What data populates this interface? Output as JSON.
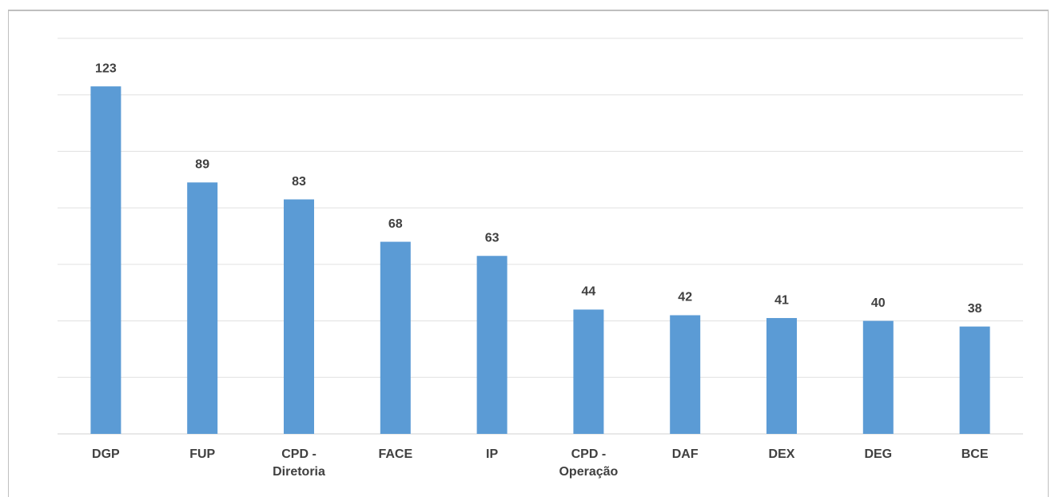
{
  "chart_data": {
    "type": "bar",
    "categories": [
      "DGP",
      "FUP",
      "CPD - Diretoria",
      "FACE",
      "IP",
      "CPD - Operação",
      "DAF",
      "DEX",
      "DEG",
      "BCE"
    ],
    "values": [
      123,
      89,
      83,
      68,
      63,
      44,
      42,
      41,
      40,
      38
    ],
    "color": "#5b9bd5",
    "ylim": [
      0,
      140
    ],
    "yticks": [
      0,
      20,
      40,
      60,
      80,
      100,
      120,
      140
    ],
    "grid": true
  }
}
